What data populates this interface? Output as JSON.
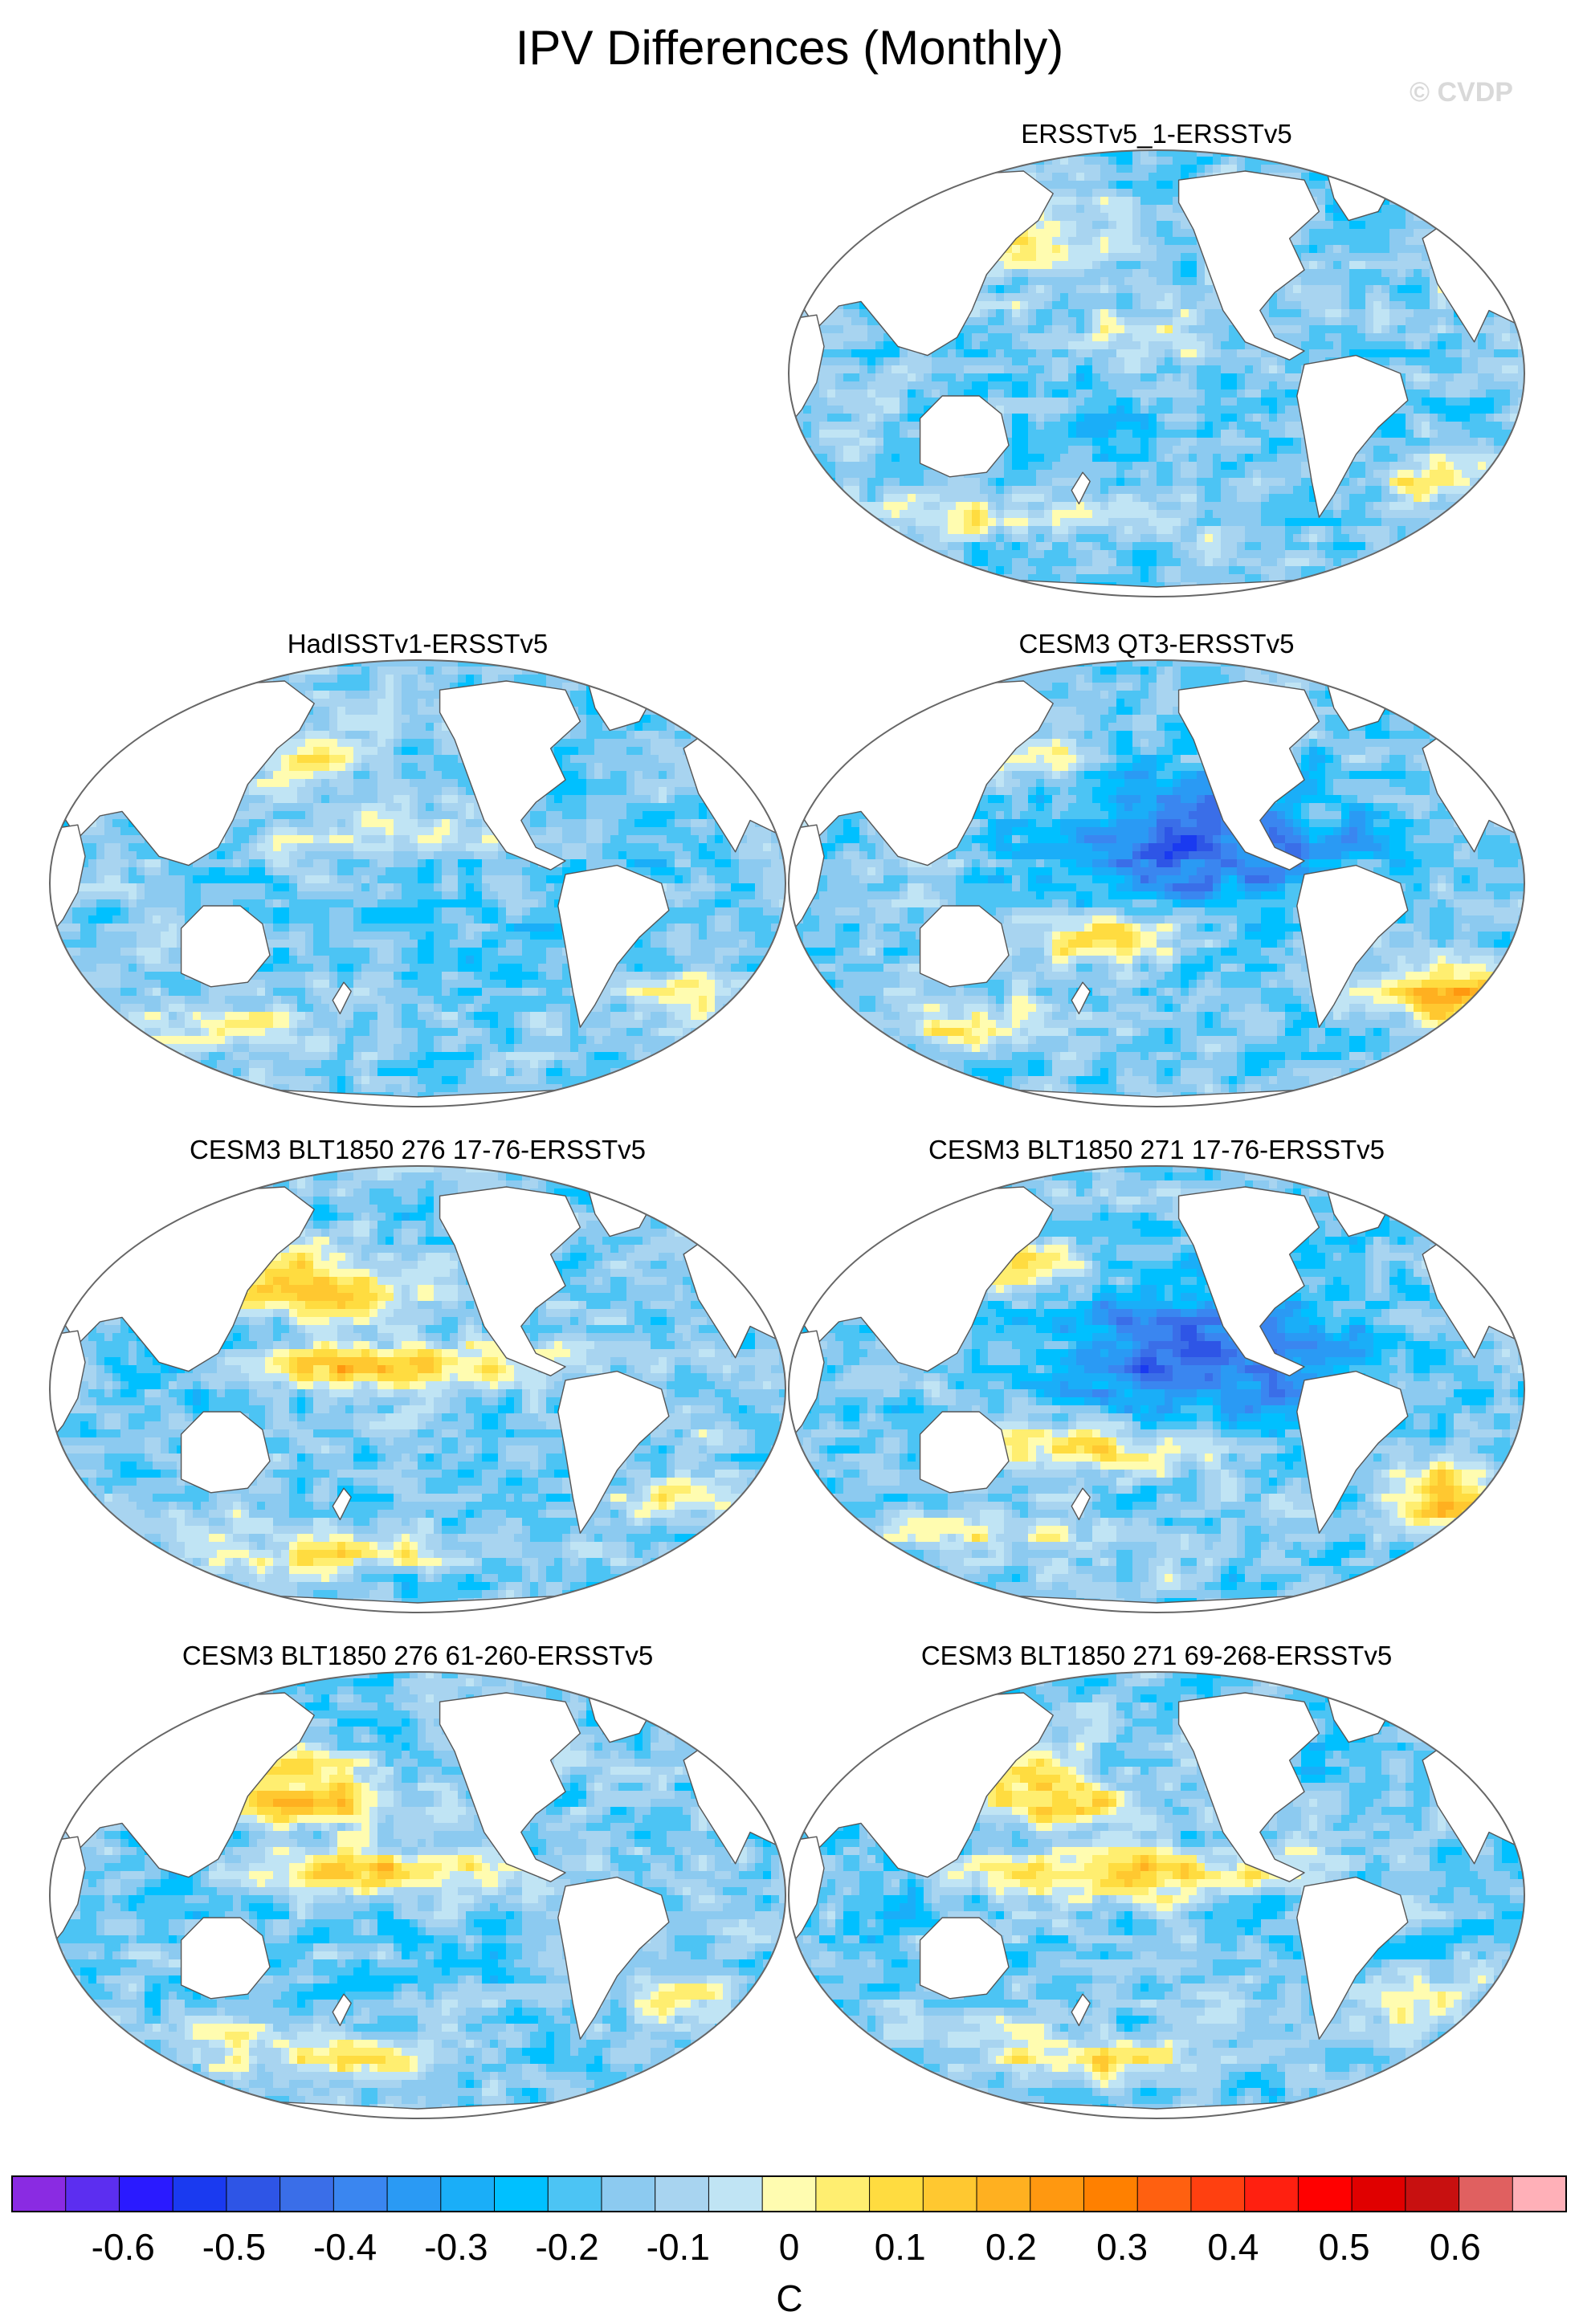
{
  "title": "IPV Differences (Monthly)",
  "watermark": "© CVDP",
  "chart_data": {
    "type": "heatmap",
    "projection": "global map",
    "panels": [
      {
        "title": "ERSSTv5_1-ERSSTv5",
        "pattern": "weak",
        "seed": 11
      },
      {
        "title": "HadISSTv1-ERSSTv5",
        "pattern": "weak",
        "seed": 23
      },
      {
        "title": "CESM3 QT3-ERSSTv5",
        "pattern": "cold",
        "seed": 37
      },
      {
        "title": "CESM3 BLT1850 276 17-76-ERSSTv5",
        "pattern": "warm",
        "seed": 41
      },
      {
        "title": "CESM3 BLT1850 271 17-76-ERSSTv5",
        "pattern": "cold",
        "seed": 53
      },
      {
        "title": "CESM3 BLT1850 276 61-260-ERSSTv5",
        "pattern": "warm",
        "seed": 67
      },
      {
        "title": "CESM3 BLT1850 271 69-268-ERSSTv5",
        "pattern": "warm",
        "seed": 79
      }
    ],
    "colorbar": {
      "unit": "C",
      "range": [
        -0.7,
        0.7
      ],
      "interval": 0.05,
      "tick_labels": [
        "-0.6",
        "-0.5",
        "-0.4",
        "-0.3",
        "-0.2",
        "-0.1",
        "0",
        "0.1",
        "0.2",
        "0.3",
        "0.4",
        "0.5",
        "0.6"
      ],
      "tick_values": [
        -0.6,
        -0.5,
        -0.4,
        -0.3,
        -0.2,
        -0.1,
        0,
        0.1,
        0.2,
        0.3,
        0.4,
        0.5,
        0.6
      ],
      "colors": [
        "#8a2be2",
        "#5c2ef0",
        "#2a1aff",
        "#1a3af0",
        "#2e55e6",
        "#3a6ee8",
        "#3a86f0",
        "#2a9af4",
        "#1aaef8",
        "#00c0ff",
        "#4cc4f4",
        "#8ccaf0",
        "#a8d4f0",
        "#c0e4f4",
        "#fffcb0",
        "#ffee70",
        "#ffdc40",
        "#ffc830",
        "#ffb020",
        "#ff9810",
        "#ff8000",
        "#ff6010",
        "#ff4010",
        "#ff2010",
        "#ff0000",
        "#e00000",
        "#c81010",
        "#e06060",
        "#ffb0b8"
      ]
    }
  }
}
